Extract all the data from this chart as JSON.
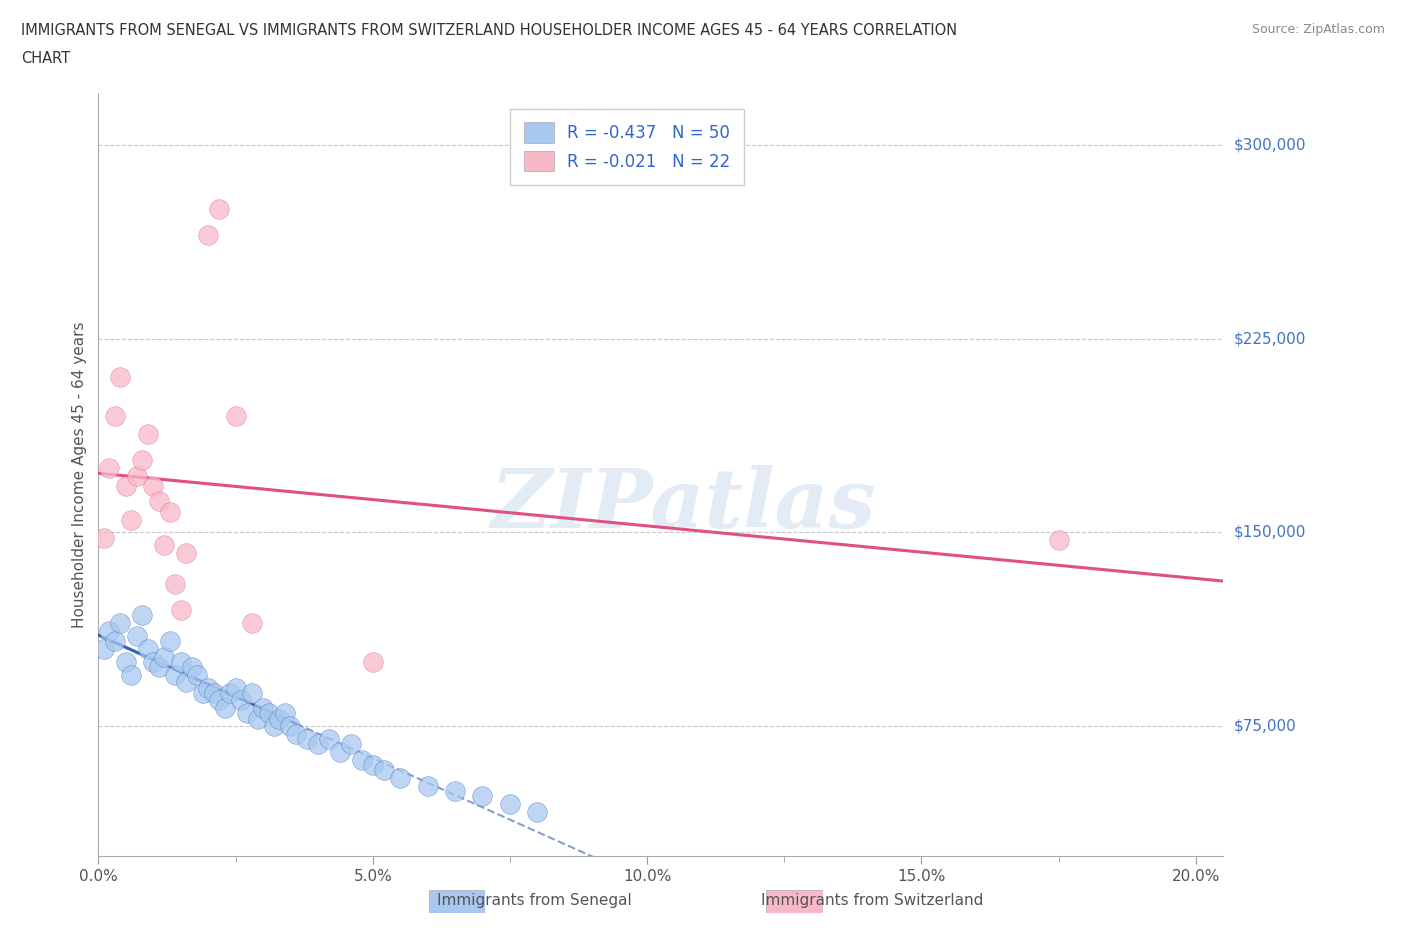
{
  "title_line1": "IMMIGRANTS FROM SENEGAL VS IMMIGRANTS FROM SWITZERLAND HOUSEHOLDER INCOME AGES 45 - 64 YEARS CORRELATION",
  "title_line2": "CHART",
  "source": "Source: ZipAtlas.com",
  "ylabel": "Householder Income Ages 45 - 64 years",
  "ytick_labels": [
    "$75,000",
    "$150,000",
    "$225,000",
    "$300,000"
  ],
  "ytick_values": [
    75000,
    150000,
    225000,
    300000
  ],
  "xmin": 0.0,
  "xmax": 0.205,
  "ymin": 25000,
  "ymax": 320000,
  "watermark": "ZIPatlas",
  "legend_r1": "R = -0.437   N = 50",
  "legend_r2": "R = -0.021   N = 22",
  "color_senegal": "#A8C8F0",
  "color_switzerland": "#F8B8C8",
  "line_color_senegal": "#3060B0",
  "line_color_switzerland": "#E05080",
  "grid_color": "#C8C8C8",
  "background_color": "#FFFFFF",
  "senegal_x": [
    0.001,
    0.002,
    0.003,
    0.004,
    0.005,
    0.006,
    0.007,
    0.008,
    0.009,
    0.01,
    0.011,
    0.012,
    0.013,
    0.014,
    0.015,
    0.016,
    0.017,
    0.018,
    0.019,
    0.02,
    0.021,
    0.022,
    0.023,
    0.024,
    0.025,
    0.026,
    0.027,
    0.028,
    0.029,
    0.03,
    0.031,
    0.032,
    0.033,
    0.034,
    0.035,
    0.036,
    0.038,
    0.04,
    0.042,
    0.044,
    0.046,
    0.048,
    0.05,
    0.052,
    0.055,
    0.06,
    0.065,
    0.07,
    0.075,
    0.08
  ],
  "senegal_y": [
    105000,
    112000,
    108000,
    115000,
    100000,
    95000,
    110000,
    118000,
    105000,
    100000,
    98000,
    102000,
    108000,
    95000,
    100000,
    92000,
    98000,
    95000,
    88000,
    90000,
    88000,
    85000,
    82000,
    88000,
    90000,
    85000,
    80000,
    88000,
    78000,
    82000,
    80000,
    75000,
    78000,
    80000,
    75000,
    72000,
    70000,
    68000,
    70000,
    65000,
    68000,
    62000,
    60000,
    58000,
    55000,
    52000,
    50000,
    48000,
    45000,
    42000
  ],
  "switzerland_x": [
    0.001,
    0.002,
    0.003,
    0.004,
    0.005,
    0.006,
    0.007,
    0.008,
    0.009,
    0.01,
    0.011,
    0.012,
    0.013,
    0.014,
    0.015,
    0.016,
    0.02,
    0.022,
    0.025,
    0.028,
    0.05,
    0.175
  ],
  "switzerland_y": [
    148000,
    175000,
    195000,
    210000,
    168000,
    155000,
    172000,
    178000,
    188000,
    168000,
    162000,
    145000,
    158000,
    130000,
    120000,
    142000,
    265000,
    275000,
    195000,
    115000,
    100000,
    147000
  ]
}
